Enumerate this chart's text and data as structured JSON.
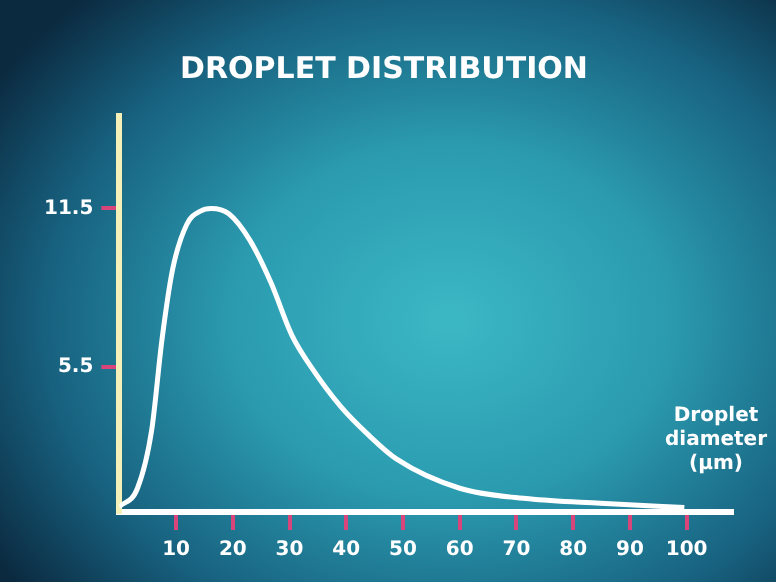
{
  "chart_data": {
    "type": "line",
    "title": "DROPLET DISTRIBUTION",
    "xlabel": "Droplet diameter (µm)",
    "x": [
      0,
      3.2,
      5.7,
      7.5,
      9.4,
      11.9,
      14.3,
      16.2,
      19.3,
      23,
      26.7,
      30.4,
      34.1,
      39,
      44,
      48.9,
      60,
      72.2,
      84.8,
      99.6
    ],
    "series": [
      {
        "color": "#ffffff",
        "values": [
          0.2,
          0.9,
          3.1,
          6.5,
          9.2,
          10.9,
          11.4,
          11.5,
          11.3,
          10.3,
          8.7,
          6.7,
          5.4,
          4,
          2.9,
          2,
          0.9,
          0.5,
          0.33,
          0.17
        ]
      }
    ],
    "xlim": [
      0,
      108
    ],
    "xticks": [
      10,
      20,
      30,
      40,
      50,
      60,
      70,
      80,
      90,
      100
    ],
    "ylim": [
      0,
      15
    ],
    "yticks": [
      5.5,
      11.5
    ],
    "grid": false,
    "legend": false,
    "marker": "none",
    "line_style": "solid"
  }
}
